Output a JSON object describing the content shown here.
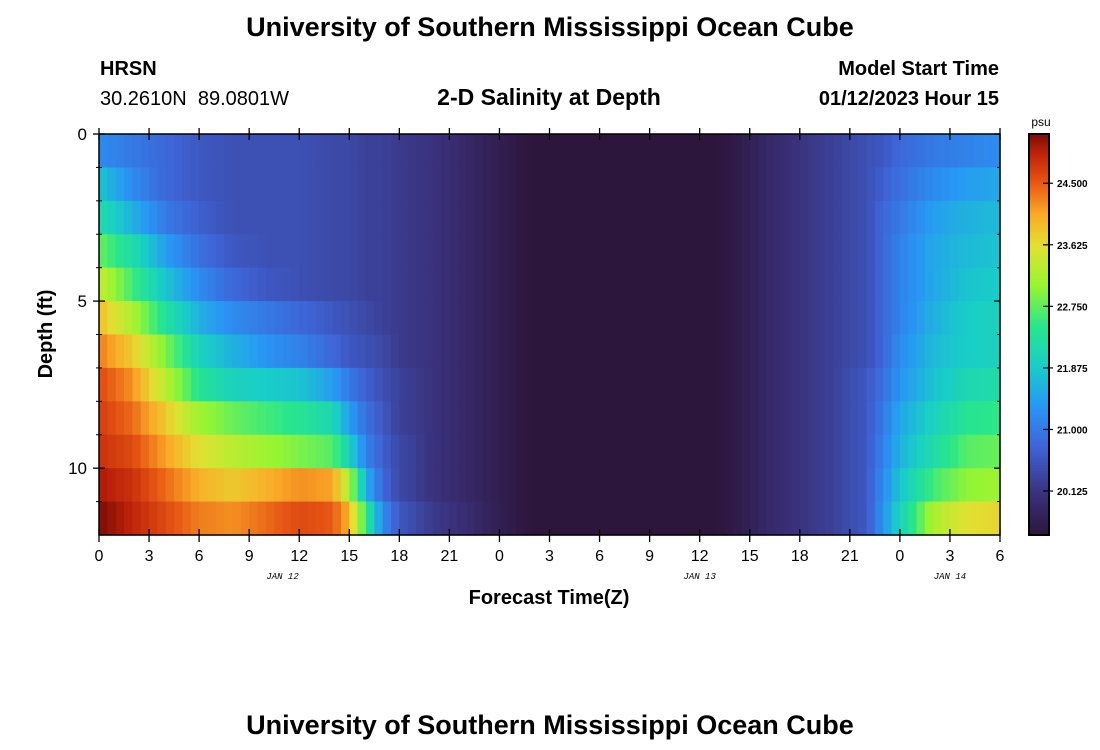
{
  "page": {
    "title": "University of Southern Mississippi Ocean Cube",
    "footer_title": "University of Southern Mississippi Ocean Cube",
    "station_name": "HRSN",
    "station_coords": "30.2610N  89.0801W",
    "model_start_label": "Model Start Time",
    "model_start_value": "01/12/2023 Hour 15"
  },
  "chart_data": {
    "type": "heatmap",
    "title": "2-D Salinity at Depth",
    "xlabel": "Forecast Time(Z)",
    "ylabel": "Depth (ft)",
    "colorbar_unit": "psu",
    "colorbar_ticks": [
      "24.500",
      "23.625",
      "22.750",
      "21.875",
      "21.000",
      "20.125"
    ],
    "colorbar_tick_values": [
      24.5,
      23.625,
      22.75,
      21.875,
      21.0,
      20.125
    ],
    "colorbar_range": [
      19.5,
      25.2
    ],
    "x_tick_labels": [
      "0",
      "3",
      "6",
      "9",
      "12",
      "15",
      "18",
      "21",
      "0",
      "3",
      "6",
      "9",
      "12",
      "15",
      "18",
      "21",
      "0",
      "3",
      "6"
    ],
    "x_tick_hours": [
      0,
      3,
      6,
      9,
      12,
      15,
      18,
      21,
      24,
      27,
      30,
      33,
      36,
      39,
      42,
      45,
      48,
      51,
      54
    ],
    "xlim": [
      0,
      54
    ],
    "date_labels": [
      {
        "hour": 11,
        "label": "JAN 12"
      },
      {
        "hour": 36,
        "label": "JAN 13"
      },
      {
        "hour": 51,
        "label": "JAN 14"
      }
    ],
    "y_tick_labels": [
      "0",
      "5",
      "10"
    ],
    "y_tick_values": [
      0,
      5,
      10
    ],
    "ylim": [
      0,
      12
    ],
    "depth_levels": [
      0.5,
      1.5,
      2.5,
      3.5,
      4.5,
      5.5,
      6.5,
      7.5,
      8.5,
      9.5,
      10.5,
      11.5
    ],
    "time_hours": [
      0,
      2,
      4,
      6,
      8,
      10,
      12,
      14,
      15,
      16,
      17,
      18,
      20,
      22,
      24,
      26,
      28,
      30,
      32,
      34,
      36,
      38,
      40,
      42,
      44,
      46,
      47,
      48,
      50,
      52,
      54
    ],
    "values": [
      [
        21.2,
        21.0,
        20.8,
        20.6,
        20.5,
        20.5,
        20.5,
        20.4,
        20.4,
        20.3,
        20.3,
        20.2,
        20.1,
        19.9,
        19.7,
        19.5,
        19.4,
        19.3,
        19.3,
        19.3,
        19.4,
        19.6,
        19.9,
        20.1,
        20.3,
        20.5,
        20.6,
        20.8,
        21.0,
        21.1,
        21.2
      ],
      [
        21.8,
        21.2,
        20.8,
        20.6,
        20.5,
        20.5,
        20.5,
        20.4,
        20.4,
        20.3,
        20.3,
        20.2,
        20.1,
        19.9,
        19.7,
        19.5,
        19.4,
        19.3,
        19.3,
        19.3,
        19.4,
        19.6,
        19.9,
        20.1,
        20.3,
        20.5,
        20.7,
        20.9,
        21.2,
        21.4,
        21.5
      ],
      [
        22.2,
        21.6,
        21.0,
        20.7,
        20.5,
        20.5,
        20.5,
        20.4,
        20.4,
        20.3,
        20.3,
        20.2,
        20.1,
        19.9,
        19.7,
        19.5,
        19.4,
        19.3,
        19.3,
        19.3,
        19.4,
        19.6,
        19.9,
        20.1,
        20.3,
        20.5,
        20.8,
        21.0,
        21.4,
        21.6,
        21.7
      ],
      [
        22.8,
        22.2,
        21.4,
        20.9,
        20.6,
        20.5,
        20.5,
        20.4,
        20.4,
        20.3,
        20.3,
        20.2,
        20.1,
        19.9,
        19.7,
        19.5,
        19.4,
        19.3,
        19.3,
        19.3,
        19.4,
        19.6,
        19.9,
        20.1,
        20.3,
        20.5,
        20.8,
        21.1,
        21.5,
        21.7,
        21.8
      ],
      [
        23.4,
        22.6,
        21.8,
        21.2,
        20.8,
        20.6,
        20.5,
        20.4,
        20.4,
        20.3,
        20.3,
        20.2,
        20.1,
        19.9,
        19.7,
        19.5,
        19.4,
        19.3,
        19.3,
        19.3,
        19.4,
        19.6,
        19.9,
        20.1,
        20.3,
        20.5,
        20.8,
        21.1,
        21.5,
        21.8,
        21.9
      ],
      [
        23.9,
        23.2,
        22.3,
        21.6,
        21.2,
        21.0,
        20.8,
        20.6,
        20.5,
        20.4,
        20.3,
        20.2,
        20.1,
        19.9,
        19.7,
        19.5,
        19.4,
        19.3,
        19.3,
        19.3,
        19.4,
        19.6,
        19.9,
        20.1,
        20.3,
        20.5,
        20.8,
        21.1,
        21.6,
        21.9,
        22.0
      ],
      [
        24.3,
        23.8,
        22.9,
        22.0,
        21.6,
        21.3,
        21.1,
        20.8,
        20.6,
        20.5,
        20.4,
        20.2,
        20.1,
        19.9,
        19.7,
        19.5,
        19.4,
        19.3,
        19.3,
        19.3,
        19.4,
        19.6,
        19.9,
        20.1,
        20.3,
        20.5,
        20.8,
        21.2,
        21.7,
        21.9,
        22.0
      ],
      [
        24.6,
        24.2,
        23.3,
        22.4,
        22.0,
        21.9,
        21.8,
        21.4,
        21.0,
        20.7,
        20.5,
        20.3,
        20.1,
        19.9,
        19.7,
        19.5,
        19.4,
        19.3,
        19.3,
        19.3,
        19.4,
        19.6,
        19.9,
        20.1,
        20.3,
        20.6,
        20.9,
        21.3,
        21.8,
        22.1,
        22.2
      ],
      [
        24.7,
        24.4,
        23.8,
        23.1,
        22.8,
        22.6,
        22.4,
        22.1,
        21.4,
        20.9,
        20.6,
        20.3,
        20.1,
        19.9,
        19.7,
        19.5,
        19.4,
        19.3,
        19.3,
        19.3,
        19.4,
        19.6,
        19.9,
        20.1,
        20.3,
        20.6,
        21.0,
        21.5,
        22.0,
        22.4,
        22.5
      ],
      [
        24.8,
        24.6,
        24.1,
        23.6,
        23.3,
        23.1,
        22.9,
        22.7,
        22.0,
        21.1,
        20.7,
        20.4,
        20.1,
        19.9,
        19.7,
        19.5,
        19.4,
        19.3,
        19.3,
        19.3,
        19.4,
        19.6,
        19.9,
        20.1,
        20.3,
        20.6,
        21.1,
        21.6,
        22.2,
        22.7,
        22.8
      ],
      [
        25.0,
        24.8,
        24.4,
        24.0,
        23.8,
        24.0,
        24.2,
        24.1,
        23.2,
        21.6,
        20.8,
        20.4,
        20.1,
        19.9,
        19.7,
        19.5,
        19.4,
        19.3,
        19.3,
        19.3,
        19.4,
        19.6,
        19.9,
        20.1,
        20.3,
        20.6,
        21.2,
        21.8,
        22.6,
        23.0,
        23.1
      ],
      [
        25.2,
        24.9,
        24.6,
        24.3,
        24.2,
        24.4,
        24.6,
        24.5,
        24.0,
        22.5,
        21.2,
        20.6,
        20.2,
        20.0,
        19.7,
        19.5,
        19.4,
        19.3,
        19.3,
        19.3,
        19.4,
        19.6,
        19.9,
        20.1,
        20.3,
        20.6,
        21.3,
        22.0,
        23.2,
        23.6,
        23.7
      ]
    ]
  }
}
